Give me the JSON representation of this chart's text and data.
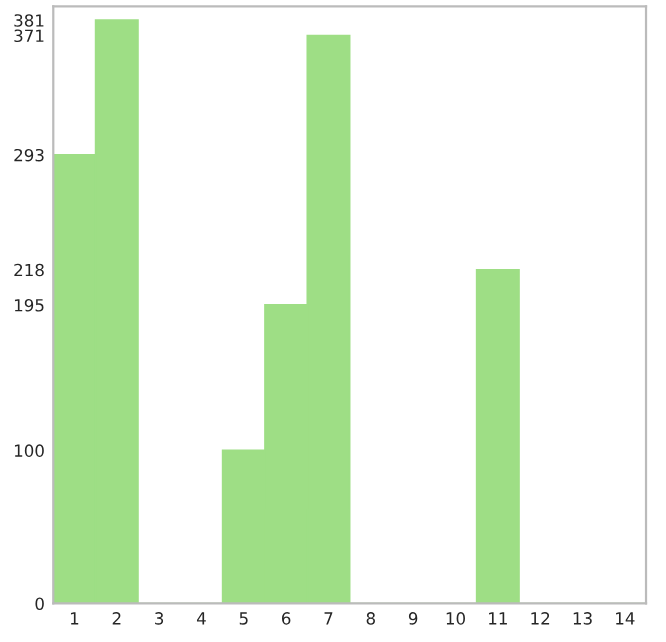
{
  "chart_data": {
    "type": "bar",
    "categories": [
      "1",
      "2",
      "3",
      "4",
      "5",
      "6",
      "7",
      "8",
      "9",
      "10",
      "11",
      "12",
      "13",
      "14"
    ],
    "values": [
      293,
      381,
      0,
      0,
      100,
      195,
      371,
      0,
      0,
      0,
      218,
      0,
      0,
      0
    ],
    "color": "#9ede85",
    "ylim": [
      0,
      390
    ],
    "yticks": [
      0,
      100,
      195,
      218,
      293,
      371,
      381
    ],
    "grid": false
  }
}
